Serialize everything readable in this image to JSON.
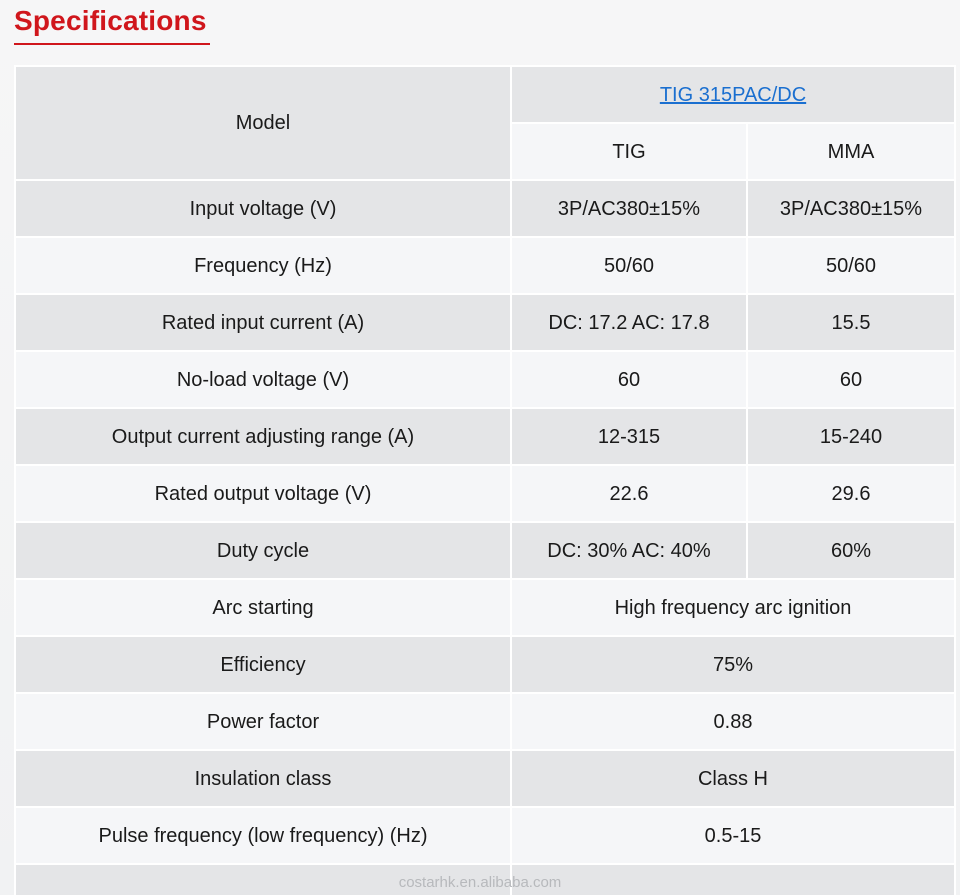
{
  "heading": "Specifications",
  "table": {
    "model_label": "Model",
    "model_name": "TIG 315PAC/DC",
    "modes": [
      "TIG",
      "MMA"
    ],
    "rows": [
      {
        "label": "Input voltage (V)",
        "tig": "3P/AC380±15%",
        "mma": "3P/AC380±15%"
      },
      {
        "label": "Frequency (Hz)",
        "tig": "50/60",
        "mma": "50/60"
      },
      {
        "label": "Rated input current (A)",
        "tig": "DC: 17.2 AC: 17.8",
        "mma": "15.5"
      },
      {
        "label": "No-load voltage (V)",
        "tig": "60",
        "mma": "60"
      },
      {
        "label": "Output current adjusting range (A)",
        "tig": "12-315",
        "mma": "15-240"
      },
      {
        "label": "Rated output voltage (V)",
        "tig": "22.6",
        "mma": "29.6"
      },
      {
        "label": "Duty cycle",
        "tig": "DC: 30% AC: 40%",
        "mma": "60%"
      }
    ],
    "merged_rows": [
      {
        "label": "Arc starting",
        "value": "High frequency arc ignition"
      },
      {
        "label": "Efficiency",
        "value": "75%"
      },
      {
        "label": "Power factor",
        "value": "0.88"
      },
      {
        "label": "Insulation class",
        "value": "Class H"
      },
      {
        "label": "Pulse frequency (low frequency) (Hz)",
        "value": "0.5-15"
      }
    ]
  },
  "watermark": "costarhk.en.alibaba.com",
  "colors": {
    "heading": "#d0161c",
    "link": "#1a6fd0",
    "row_dark": "#e4e5e7",
    "row_light": "#f5f6f8"
  }
}
